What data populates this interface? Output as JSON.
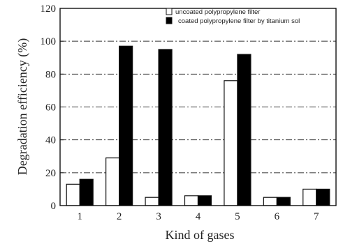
{
  "chart_data": {
    "type": "bar",
    "categories": [
      "1",
      "2",
      "3",
      "4",
      "5",
      "6",
      "7"
    ],
    "series": [
      {
        "name": "uncoated polypropylene filter",
        "color": "#ffffff",
        "values": [
          13,
          29,
          5,
          6,
          76,
          5,
          10
        ]
      },
      {
        "name": "coated polypropylene filter by titanium sol",
        "color": "#000000",
        "values": [
          16,
          97,
          95,
          6,
          92,
          5,
          10
        ]
      }
    ],
    "xlabel": "Kind of gases",
    "ylabel": "Degradation efficiency (%)",
    "ylim": [
      0,
      120
    ],
    "yticks": [
      "0",
      "20",
      "40",
      "60",
      "80",
      "100",
      "120"
    ],
    "grid": "horizontal dash-dot",
    "legend": "top-right"
  }
}
